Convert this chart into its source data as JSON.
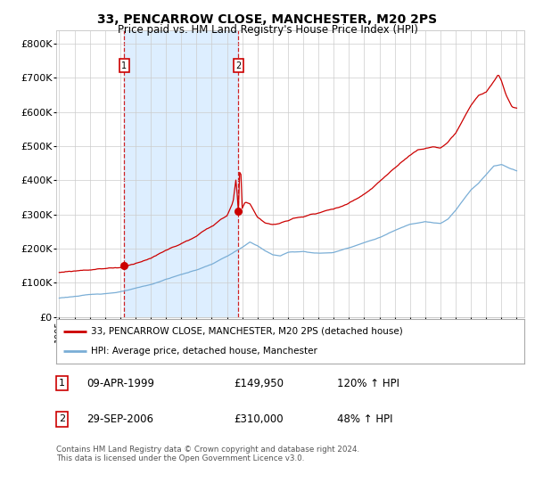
{
  "title": "33, PENCARROW CLOSE, MANCHESTER, M20 2PS",
  "subtitle": "Price paid vs. HM Land Registry's House Price Index (HPI)",
  "x_start_year": 1995,
  "x_end_year": 2025,
  "ylim": [
    0,
    840000
  ],
  "yticks": [
    0,
    100000,
    200000,
    300000,
    400000,
    500000,
    600000,
    700000,
    800000
  ],
  "ytick_labels": [
    "£0",
    "£100K",
    "£200K",
    "£300K",
    "£400K",
    "£500K",
    "£600K",
    "£700K",
    "£800K"
  ],
  "sale1_date_label": "09-APR-1999",
  "sale1_price": 149950,
  "sale1_hpi_pct": "120% ↑ HPI",
  "sale1_year": 1999.27,
  "sale2_date_label": "29-SEP-2006",
  "sale2_price": 310000,
  "sale2_hpi_pct": "48% ↑ HPI",
  "sale2_year": 2006.75,
  "legend_line1": "33, PENCARROW CLOSE, MANCHESTER, M20 2PS (detached house)",
  "legend_line2": "HPI: Average price, detached house, Manchester",
  "footer": "Contains HM Land Registry data © Crown copyright and database right 2024.\nThis data is licensed under the Open Government Licence v3.0.",
  "red_color": "#cc0000",
  "blue_color": "#7aaed6",
  "shade_color": "#ddeeff",
  "grid_color": "#cccccc",
  "bg_color": "#ffffff"
}
